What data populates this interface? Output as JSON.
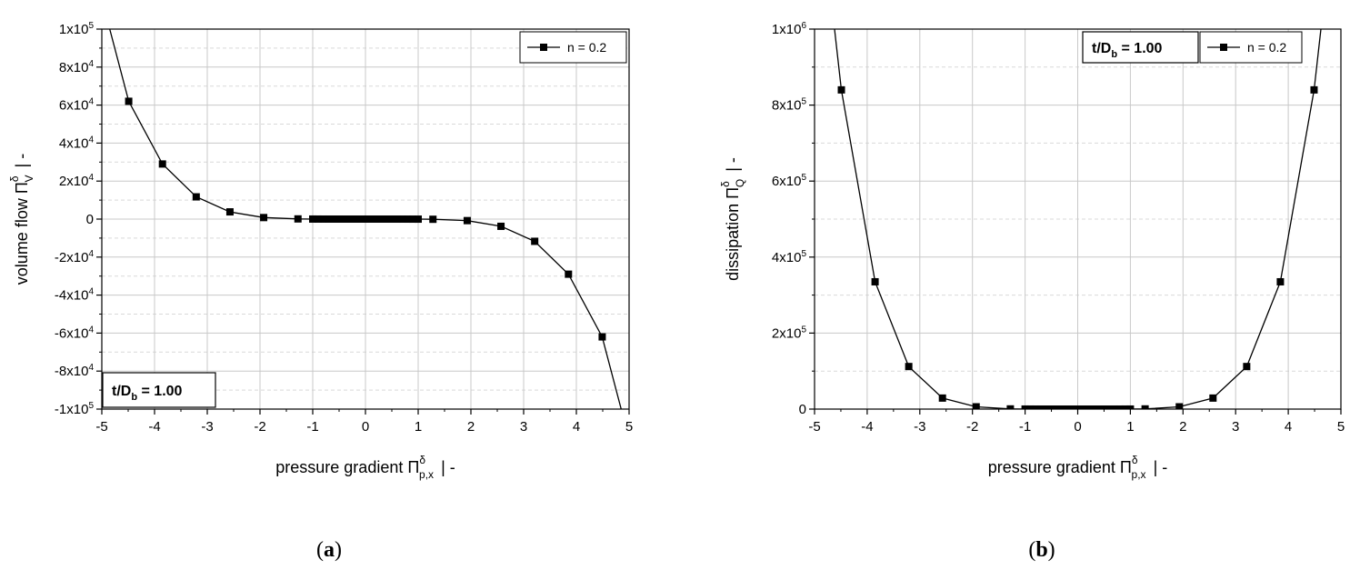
{
  "chart_data": [
    {
      "type": "line",
      "panel_label": "a",
      "xlabel": {
        "text": "pressure gradient Π",
        "sup": "δ",
        "sub": "p,x",
        "unit": "|  -"
      },
      "ylabel": {
        "text": "volume flow Π",
        "sup": "δ",
        "sub": "V",
        "unit": "|  -"
      },
      "xlim": [
        -5,
        5
      ],
      "ylim": [
        -100000,
        100000
      ],
      "x_ticks": [
        -5,
        -4,
        -3,
        -2,
        -1,
        0,
        1,
        2,
        3,
        4,
        5
      ],
      "x_tick_labels": [
        "-5",
        "-4",
        "-3",
        "-2",
        "-1",
        "0",
        "1",
        "2",
        "3",
        "4",
        "5"
      ],
      "y_ticks": [
        -100000,
        -80000,
        -60000,
        -40000,
        -20000,
        0,
        20000,
        40000,
        60000,
        80000,
        100000
      ],
      "y_tick_labels": [
        {
          "base": "-1x10",
          "exp": "5"
        },
        {
          "base": "-8x10",
          "exp": "4"
        },
        {
          "base": "-6x10",
          "exp": "4"
        },
        {
          "base": "-4x10",
          "exp": "4"
        },
        {
          "base": "-2x10",
          "exp": "4"
        },
        {
          "base": "0",
          "exp": ""
        },
        {
          "base": "2x10",
          "exp": "4"
        },
        {
          "base": "4x10",
          "exp": "4"
        },
        {
          "base": "6x10",
          "exp": "4"
        },
        {
          "base": "8x10",
          "exp": "4"
        },
        {
          "base": "1x10",
          "exp": "5"
        }
      ],
      "grid": true,
      "legend": {
        "label": "n = 0.2",
        "position": "top-right"
      },
      "annotation": {
        "base": "t/D",
        "sub": "b",
        "value": " = 1.00",
        "position": "bottom-left"
      },
      "series": [
        {
          "name": "n = 0.2",
          "x": [
            -4.49,
            -3.85,
            -3.21,
            -2.57,
            -1.93,
            -1.28,
            -1.0,
            -0.9,
            -0.8,
            -0.7,
            -0.6,
            -0.5,
            -0.4,
            -0.3,
            -0.2,
            -0.1,
            0.0,
            0.1,
            0.2,
            0.3,
            0.4,
            0.5,
            0.6,
            0.7,
            0.8,
            0.9,
            1.0,
            1.28,
            1.93,
            2.57,
            3.21,
            3.85,
            4.49
          ],
          "y": [
            62000,
            29000,
            11700,
            3800,
            800,
            100,
            20,
            12,
            7,
            4,
            2,
            1,
            0.4,
            0.1,
            0,
            0,
            0,
            0,
            0,
            -0.1,
            -0.4,
            -1,
            -2,
            -4,
            -7,
            -12,
            -20,
            -100,
            -800,
            -3800,
            -11700,
            -29000,
            -62000
          ],
          "curve_extends_to": [
            [
              -4.85,
              100000
            ],
            [
              4.85,
              -100000
            ]
          ]
        }
      ]
    },
    {
      "type": "line",
      "panel_label": "b",
      "xlabel": {
        "text": "pressure gradient Π",
        "sup": "δ",
        "sub": "p,x",
        "unit": "|  -"
      },
      "ylabel": {
        "text": "dissipation Π",
        "sup": "δ",
        "sub": "Q",
        "unit": "|  -"
      },
      "xlim": [
        -5,
        5
      ],
      "ylim": [
        0,
        1000000
      ],
      "x_ticks": [
        -5,
        -4,
        -3,
        -2,
        -1,
        0,
        1,
        2,
        3,
        4,
        5
      ],
      "x_tick_labels": [
        "-5",
        "-4",
        "-3",
        "-2",
        "-1",
        "0",
        "1",
        "2",
        "3",
        "4",
        "5"
      ],
      "y_ticks": [
        0,
        200000,
        400000,
        600000,
        800000,
        1000000
      ],
      "y_tick_labels": [
        {
          "base": "0",
          "exp": ""
        },
        {
          "base": "2x10",
          "exp": "5"
        },
        {
          "base": "4x10",
          "exp": "5"
        },
        {
          "base": "6x10",
          "exp": "5"
        },
        {
          "base": "8x10",
          "exp": "5"
        },
        {
          "base": "1x10",
          "exp": "6"
        }
      ],
      "grid": true,
      "legend": {
        "label": "n = 0.2",
        "position": "top-right"
      },
      "annotation": {
        "base": "t/D",
        "sub": "b",
        "value": " = 1.00",
        "position": "top-right"
      },
      "series": [
        {
          "name": "n = 0.2",
          "x": [
            -4.49,
            -3.85,
            -3.21,
            -2.57,
            -1.93,
            -1.28,
            -1.0,
            -0.9,
            -0.8,
            -0.7,
            -0.6,
            -0.5,
            -0.4,
            -0.3,
            -0.2,
            -0.1,
            0.0,
            0.1,
            0.2,
            0.3,
            0.4,
            0.5,
            0.6,
            0.7,
            0.8,
            0.9,
            1.0,
            1.28,
            1.93,
            2.57,
            3.21,
            3.85,
            4.49
          ],
          "y": [
            840000,
            335000,
            112000,
            29000,
            6000,
            500,
            100,
            60,
            35,
            18,
            9,
            4,
            1.5,
            0.4,
            0,
            0,
            0,
            0,
            0,
            0.4,
            1.5,
            4,
            9,
            18,
            35,
            60,
            100,
            500,
            6000,
            29000,
            112000,
            335000,
            840000
          ],
          "curve_extends_to": [
            [
              -4.62,
              1000000
            ],
            [
              4.62,
              1000000
            ]
          ]
        }
      ]
    }
  ]
}
